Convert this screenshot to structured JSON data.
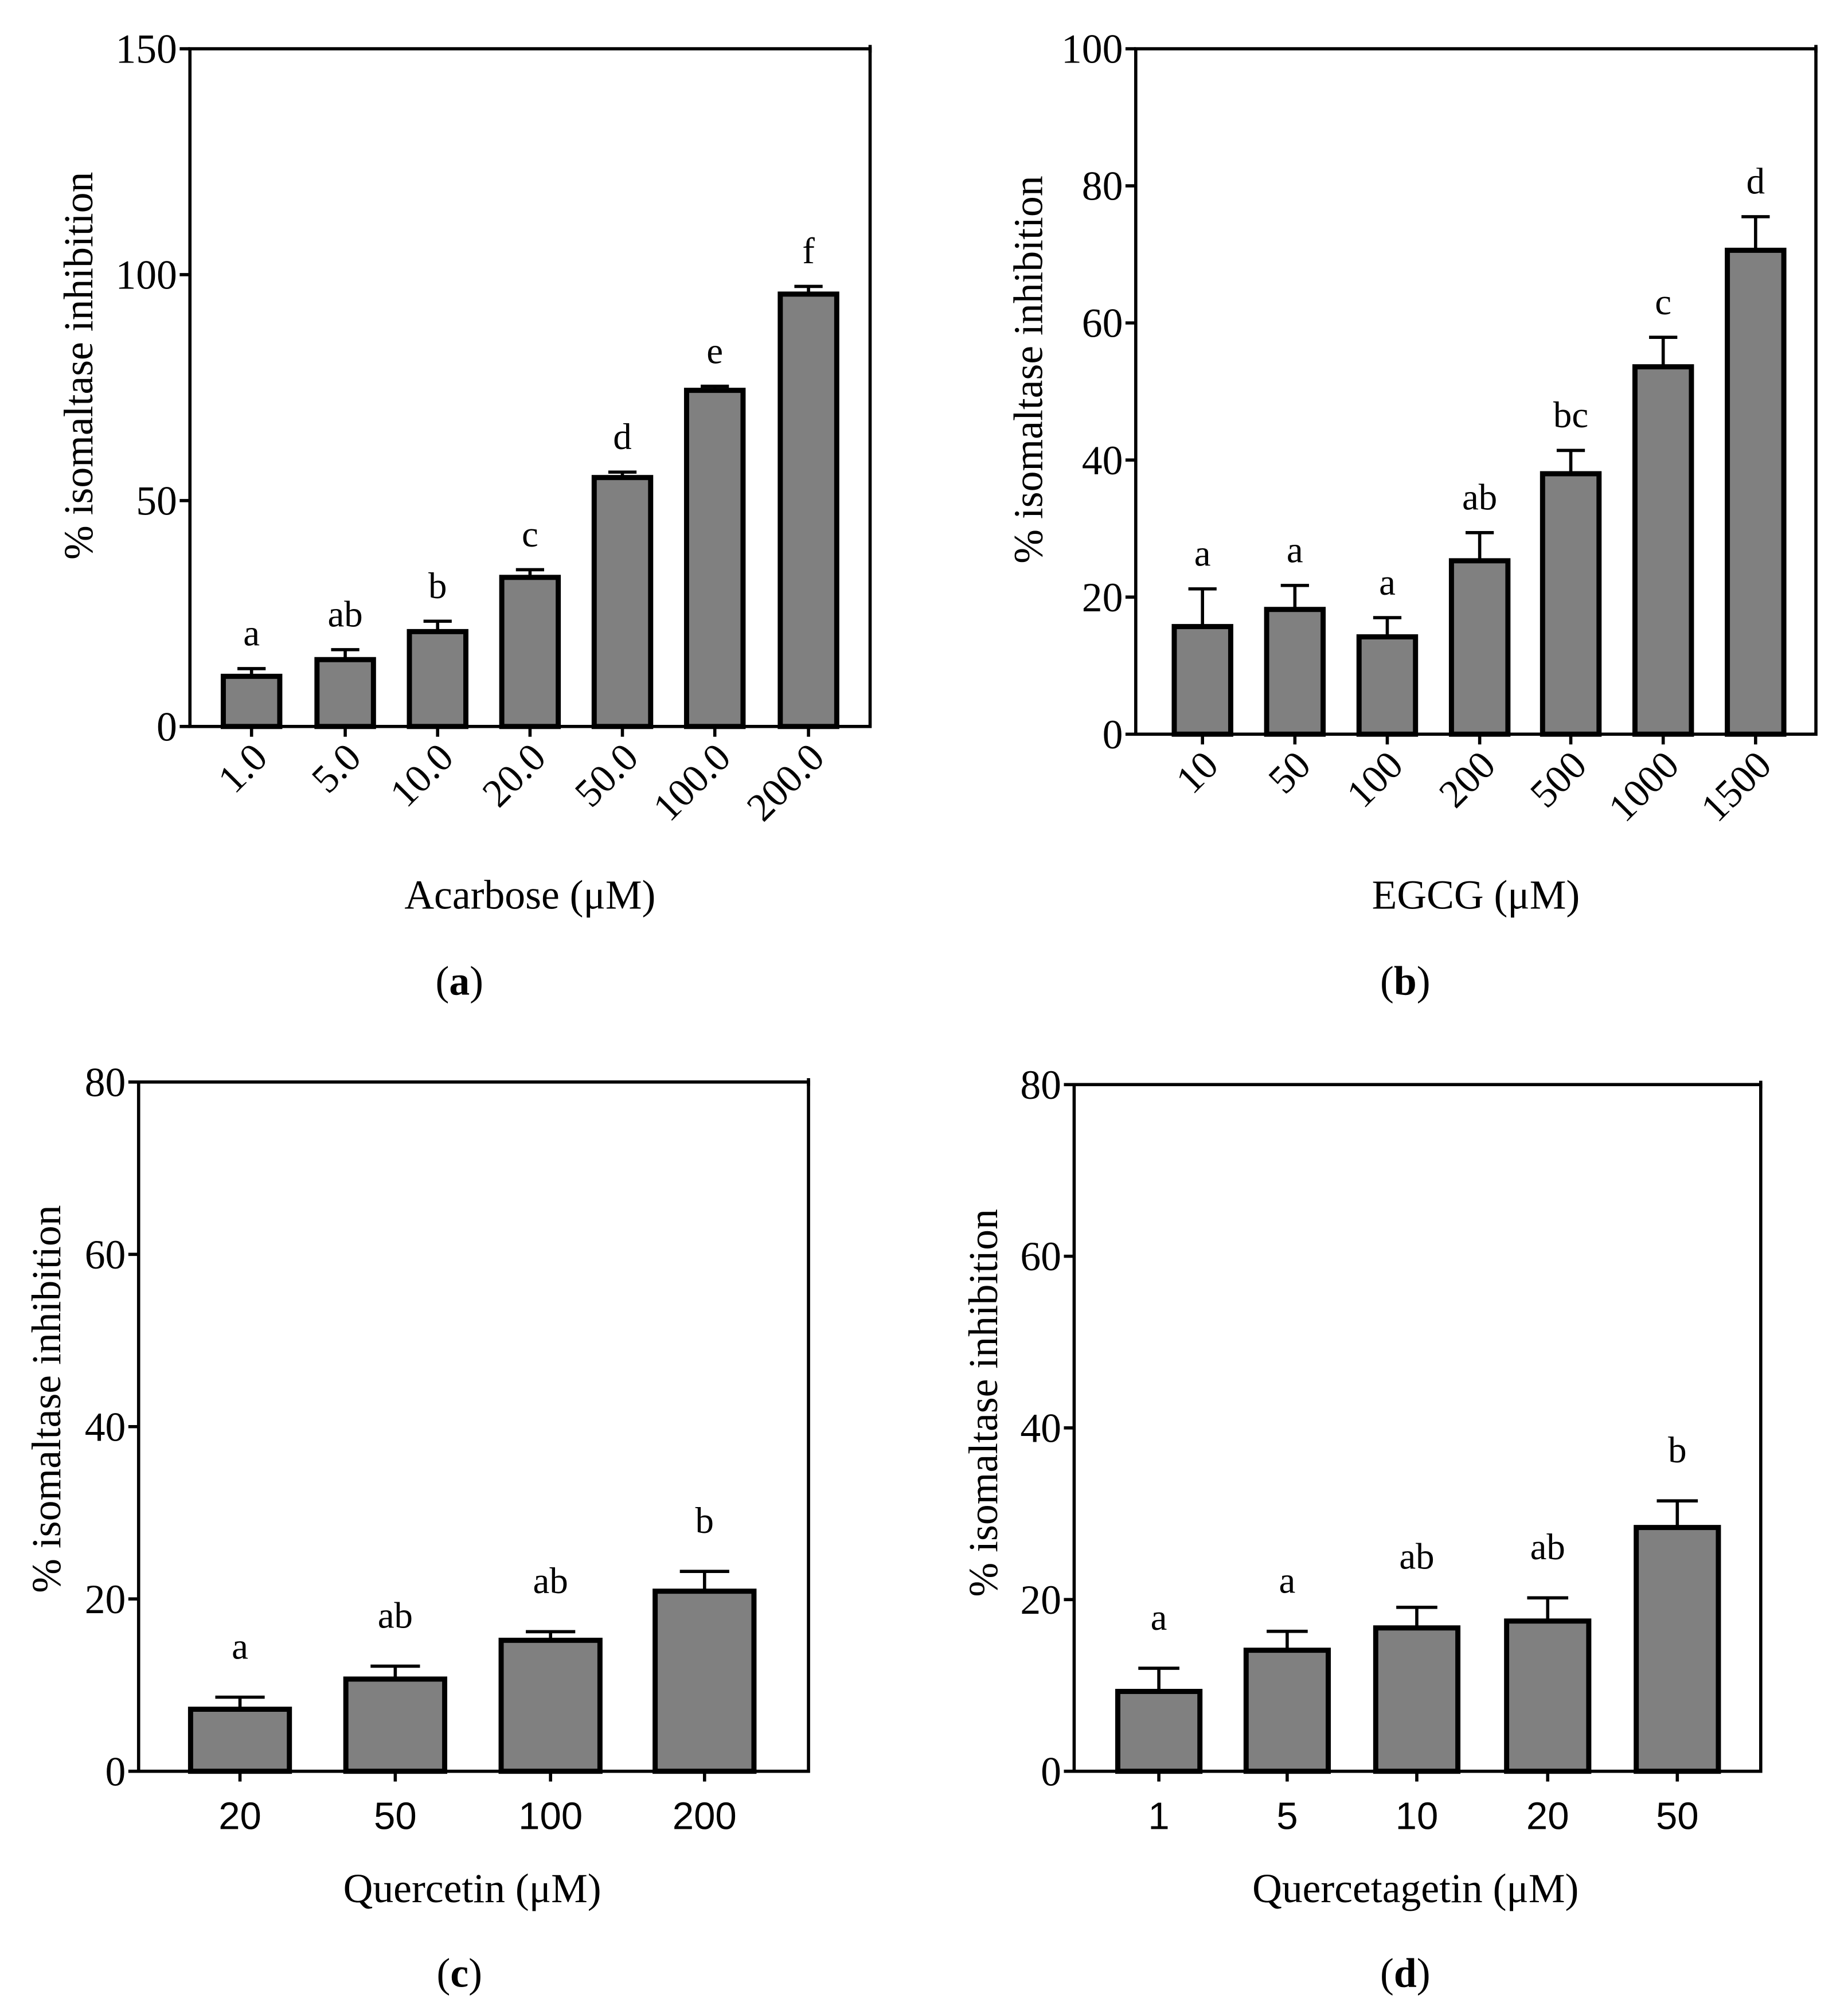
{
  "colors": {
    "bar_fill": "#808080",
    "axis": "#000000",
    "background": "#ffffff"
  },
  "chart_data": [
    {
      "panel_label": "(a)",
      "type": "bar",
      "title": "",
      "xlabel": "Acarbose (μM)",
      "ylabel": "% isomaltase inhibition",
      "ylim": [
        0,
        150
      ],
      "yticks": [
        0,
        50,
        100,
        150
      ],
      "categories": [
        "1.0",
        "5.0",
        "10.0",
        "20.0",
        "50.0",
        "100.0",
        "200.0"
      ],
      "values": [
        11.1,
        14.8,
        21.0,
        33.0,
        55.1,
        74.4,
        95.7
      ],
      "error_upper": [
        12.8,
        17.0,
        23.3,
        34.7,
        56.3,
        75.3,
        97.4
      ],
      "significance_letters": [
        "a",
        "ab",
        "b",
        "c",
        "d",
        "e",
        "f"
      ]
    },
    {
      "panel_label": "(b)",
      "type": "bar",
      "title": "",
      "xlabel": "EGCG (μM)",
      "ylabel": "% isomaltase inhibition",
      "ylim": [
        0,
        100
      ],
      "yticks": [
        0,
        20,
        40,
        60,
        80,
        100
      ],
      "categories": [
        "10",
        "50",
        "100",
        "200",
        "500",
        "1000",
        "1500"
      ],
      "values": [
        15.7,
        18.2,
        14.2,
        25.3,
        38.0,
        53.6,
        70.6
      ],
      "error_upper": [
        21.2,
        21.7,
        17.0,
        29.4,
        41.4,
        57.9,
        75.5
      ],
      "significance_letters": [
        "a",
        "a",
        "a",
        "ab",
        "bc",
        "c",
        "d"
      ]
    },
    {
      "panel_label": "(c)",
      "type": "bar",
      "title": "",
      "xlabel": "Quercetin (μM)",
      "ylabel": "% isomaltase inhibition",
      "ylim": [
        0,
        80
      ],
      "yticks": [
        0,
        20,
        40,
        60,
        80
      ],
      "categories": [
        "20",
        "50",
        "100",
        "200"
      ],
      "values": [
        7.2,
        10.7,
        15.2,
        20.9
      ],
      "error_upper": [
        8.6,
        12.2,
        16.2,
        23.2
      ],
      "significance_letters": [
        "a",
        "ab",
        "ab",
        "b"
      ]
    },
    {
      "panel_label": "(d)",
      "type": "bar",
      "title": "",
      "xlabel": "Quercetagetin (μM)",
      "ylabel": "% isomaltase inhibition",
      "ylim": [
        0,
        80
      ],
      "yticks": [
        0,
        20,
        40,
        60,
        80
      ],
      "categories": [
        "1",
        "5",
        "10",
        "20",
        "50"
      ],
      "values": [
        9.3,
        14.1,
        16.7,
        17.5,
        28.4
      ],
      "error_upper": [
        12.0,
        16.3,
        19.1,
        20.2,
        31.5
      ],
      "significance_letters": [
        "a",
        "a",
        "ab",
        "ab",
        "b"
      ]
    }
  ]
}
